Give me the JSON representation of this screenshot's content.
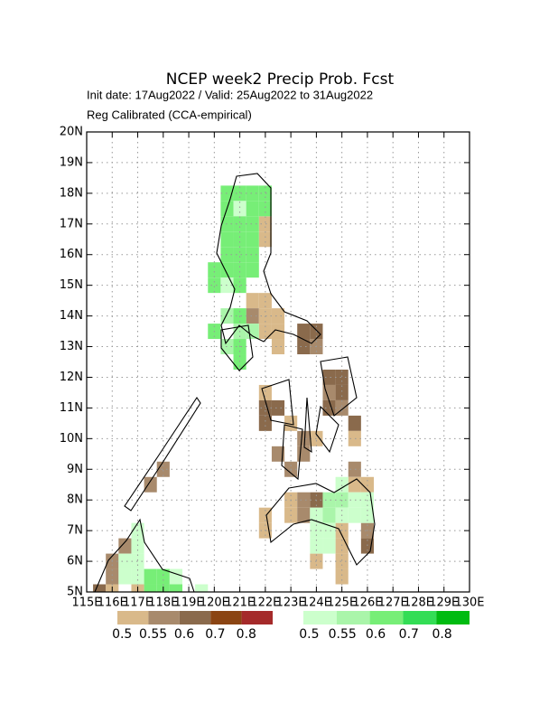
{
  "chart_data": {
    "type": "grid_map",
    "title": "NCEP week2 Precip Prob. Fcst",
    "subtitle": "Init date: 17Aug2022 / Valid: 25Aug2022 to 31Aug2022",
    "subtitle2": "Reg Calibrated (CCA-empirical)",
    "xlim": [
      115,
      130
    ],
    "ylim": [
      5,
      20
    ],
    "grid": true,
    "cell_size": 0.5,
    "xticks": [
      {
        "value": 115,
        "label": "115E"
      },
      {
        "value": 116,
        "label": "116E"
      },
      {
        "value": 117,
        "label": "117E"
      },
      {
        "value": 118,
        "label": "118E"
      },
      {
        "value": 119,
        "label": "119E"
      },
      {
        "value": 120,
        "label": "120E"
      },
      {
        "value": 121,
        "label": "121E"
      },
      {
        "value": 122,
        "label": "122E"
      },
      {
        "value": 123,
        "label": "123E"
      },
      {
        "value": 124,
        "label": "124E"
      },
      {
        "value": 125,
        "label": "125E"
      },
      {
        "value": 126,
        "label": "126E"
      },
      {
        "value": 127,
        "label": "127E"
      },
      {
        "value": 128,
        "label": "128E"
      },
      {
        "value": 129,
        "label": "129E"
      },
      {
        "value": 130,
        "label": "130E"
      }
    ],
    "yticks": [
      {
        "value": 5,
        "label": "5N"
      },
      {
        "value": 6,
        "label": "6N"
      },
      {
        "value": 7,
        "label": "7N"
      },
      {
        "value": 8,
        "label": "8N"
      },
      {
        "value": 9,
        "label": "9N"
      },
      {
        "value": 10,
        "label": "10N"
      },
      {
        "value": 11,
        "label": "11N"
      },
      {
        "value": 12,
        "label": "12N"
      },
      {
        "value": 13,
        "label": "13N"
      },
      {
        "value": 14,
        "label": "14N"
      },
      {
        "value": 15,
        "label": "15N"
      },
      {
        "value": 16,
        "label": "16N"
      },
      {
        "value": 17,
        "label": "17N"
      },
      {
        "value": 18,
        "label": "18N"
      },
      {
        "value": 19,
        "label": "19N"
      },
      {
        "value": 20,
        "label": "20N"
      }
    ],
    "below_scale": {
      "levels": [
        0.5,
        0.55,
        0.6,
        0.7,
        0.8
      ],
      "colors": [
        "#d9b98a",
        "#a88a6c",
        "#8a6a4c",
        "#8b4513",
        "#a52a2a"
      ]
    },
    "above_scale": {
      "levels": [
        0.5,
        0.55,
        0.6,
        0.7,
        0.8
      ],
      "colors": [
        "#ccffcc",
        "#aaf5aa",
        "#77ee77",
        "#33dd55",
        "#00bb11"
      ]
    },
    "below_cells": [
      [
        122.0,
        17.0,
        0.5
      ],
      [
        122.0,
        16.5,
        0.5
      ],
      [
        121.5,
        14.5,
        0.5
      ],
      [
        122.0,
        14.5,
        0.5
      ],
      [
        121.5,
        14.0,
        0.55
      ],
      [
        122.0,
        14.0,
        0.5
      ],
      [
        122.5,
        14.0,
        0.5
      ],
      [
        122.0,
        13.5,
        0.5
      ],
      [
        122.5,
        13.5,
        0.5
      ],
      [
        123.5,
        13.5,
        0.6
      ],
      [
        124.0,
        13.5,
        0.6
      ],
      [
        122.5,
        13.0,
        0.5
      ],
      [
        123.5,
        13.0,
        0.6
      ],
      [
        124.0,
        13.0,
        0.55
      ],
      [
        124.5,
        12.0,
        0.6
      ],
      [
        125.0,
        12.0,
        0.6
      ],
      [
        122.0,
        11.5,
        0.5
      ],
      [
        124.5,
        11.5,
        0.55
      ],
      [
        125.0,
        11.5,
        0.6
      ],
      [
        122.0,
        11.0,
        0.6
      ],
      [
        122.5,
        11.0,
        0.6
      ],
      [
        124.5,
        11.0,
        0.6
      ],
      [
        125.0,
        11.0,
        0.55
      ],
      [
        122.0,
        10.5,
        0.6
      ],
      [
        123.0,
        10.5,
        0.5
      ],
      [
        125.5,
        10.5,
        0.6
      ],
      [
        123.5,
        10.0,
        0.55
      ],
      [
        124.0,
        10.0,
        0.5
      ],
      [
        125.5,
        10.0,
        0.5
      ],
      [
        122.5,
        9.5,
        0.55
      ],
      [
        123.5,
        9.5,
        0.55
      ],
      [
        118.0,
        9.0,
        0.55
      ],
      [
        123.0,
        9.0,
        0.55
      ],
      [
        125.5,
        9.0,
        0.55
      ],
      [
        117.5,
        8.5,
        0.55
      ],
      [
        125.5,
        8.5,
        0.5
      ],
      [
        126.0,
        8.5,
        0.5
      ],
      [
        123.0,
        8.0,
        0.5
      ],
      [
        123.5,
        8.0,
        0.55
      ],
      [
        124.0,
        8.0,
        0.6
      ],
      [
        122.0,
        7.5,
        0.5
      ],
      [
        123.0,
        7.5,
        0.5
      ],
      [
        123.5,
        7.5,
        0.55
      ],
      [
        122.0,
        7.0,
        0.5
      ],
      [
        125.0,
        7.0,
        0.5
      ],
      [
        126.0,
        7.0,
        0.55
      ],
      [
        116.5,
        6.5,
        0.55
      ],
      [
        125.0,
        6.5,
        0.5
      ],
      [
        126.0,
        6.5,
        0.6
      ],
      [
        116.0,
        6.0,
        0.55
      ],
      [
        124.0,
        6.0,
        0.5
      ],
      [
        125.0,
        6.0,
        0.5
      ],
      [
        116.0,
        5.5,
        0.55
      ],
      [
        125.0,
        5.5,
        0.5
      ],
      [
        115.5,
        5.0,
        0.6
      ],
      [
        116.0,
        5.0,
        0.5
      ],
      [
        117.0,
        5.0,
        0.5
      ]
    ],
    "above_cells": [
      [
        120.5,
        18.0,
        0.6
      ],
      [
        121.0,
        18.0,
        0.6
      ],
      [
        121.5,
        18.0,
        0.6
      ],
      [
        122.0,
        18.0,
        0.6
      ],
      [
        120.5,
        17.5,
        0.6
      ],
      [
        121.0,
        17.5,
        0.5
      ],
      [
        121.5,
        17.5,
        0.6
      ],
      [
        122.0,
        17.5,
        0.6
      ],
      [
        120.5,
        17.0,
        0.6
      ],
      [
        121.0,
        17.0,
        0.6
      ],
      [
        121.5,
        17.0,
        0.6
      ],
      [
        120.5,
        16.5,
        0.6
      ],
      [
        121.0,
        16.5,
        0.6
      ],
      [
        121.5,
        16.5,
        0.6
      ],
      [
        120.5,
        16.0,
        0.6
      ],
      [
        121.0,
        16.0,
        0.6
      ],
      [
        121.5,
        16.0,
        0.6
      ],
      [
        120.0,
        15.5,
        0.6
      ],
      [
        120.5,
        15.5,
        0.6
      ],
      [
        121.0,
        15.5,
        0.6
      ],
      [
        121.5,
        15.5,
        0.6
      ],
      [
        120.0,
        15.0,
        0.6
      ],
      [
        120.5,
        15.0,
        0.5
      ],
      [
        121.0,
        15.0,
        0.6
      ],
      [
        120.5,
        14.0,
        0.55
      ],
      [
        121.0,
        14.0,
        0.6
      ],
      [
        120.0,
        13.5,
        0.6
      ],
      [
        121.0,
        13.5,
        0.55
      ],
      [
        121.5,
        13.5,
        0.55
      ],
      [
        120.5,
        13.0,
        0.55
      ],
      [
        121.0,
        13.0,
        0.6
      ],
      [
        121.0,
        12.5,
        0.6
      ],
      [
        125.0,
        8.5,
        0.5
      ],
      [
        124.5,
        8.0,
        0.55
      ],
      [
        125.0,
        8.0,
        0.55
      ],
      [
        125.5,
        8.0,
        0.5
      ],
      [
        126.0,
        8.0,
        0.5
      ],
      [
        124.0,
        7.5,
        0.5
      ],
      [
        124.5,
        7.5,
        0.55
      ],
      [
        125.0,
        7.5,
        0.5
      ],
      [
        125.5,
        7.5,
        0.5
      ],
      [
        126.0,
        7.5,
        0.5
      ],
      [
        117.0,
        7.0,
        0.5
      ],
      [
        124.0,
        7.0,
        0.5
      ],
      [
        124.5,
        7.0,
        0.5
      ],
      [
        117.0,
        6.5,
        0.5
      ],
      [
        124.0,
        6.5,
        0.5
      ],
      [
        124.5,
        6.5,
        0.5
      ],
      [
        116.5,
        6.0,
        0.5
      ],
      [
        117.0,
        6.0,
        0.5
      ],
      [
        116.5,
        5.5,
        0.5
      ],
      [
        117.0,
        5.5,
        0.5
      ],
      [
        117.5,
        5.5,
        0.6
      ],
      [
        118.0,
        5.5,
        0.6
      ],
      [
        118.5,
        5.5,
        0.5
      ],
      [
        117.5,
        5.0,
        0.6
      ],
      [
        118.0,
        5.0,
        0.6
      ],
      [
        118.5,
        5.0,
        0.6
      ],
      [
        119.5,
        5.0,
        0.5
      ]
    ]
  }
}
